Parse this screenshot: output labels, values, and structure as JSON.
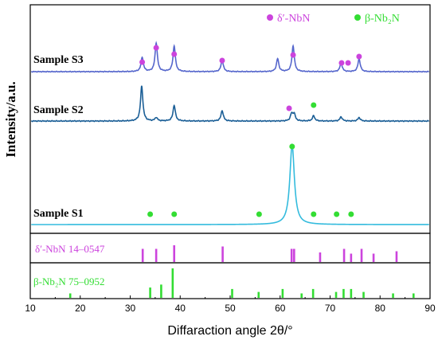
{
  "chart_data": {
    "type": "line",
    "xlabel": "Diffaraction angle 2θ/°",
    "ylabel": "Intensity/a.u.",
    "xlim": [
      10,
      90
    ],
    "xticks": [
      "10",
      "20",
      "30",
      "40",
      "50",
      "60",
      "70",
      "80",
      "90"
    ],
    "grid": false,
    "legend": {
      "position": "top-right",
      "items": [
        {
          "name": "δ′-NbN",
          "marker": "circle",
          "color": "#CC44DD"
        },
        {
          "name": "β-Nb2N",
          "display": "β-Nb₂N",
          "marker": "circle",
          "color": "#33DD33"
        }
      ]
    },
    "series": [
      {
        "name": "Sample S3",
        "color": "#5566CC",
        "peaks": [
          [
            32.4,
            0.5
          ],
          [
            35.2,
            1.0
          ],
          [
            38.8,
            0.9
          ],
          [
            48.4,
            0.4
          ],
          [
            59.5,
            0.45
          ],
          [
            62.6,
            0.9
          ],
          [
            72.2,
            0.3
          ],
          [
            75.8,
            0.45
          ]
        ],
        "markers_nbn": [
          32.4,
          35.2,
          38.8,
          48.4,
          62.6,
          72.3,
          73.6,
          75.8
        ],
        "markers_nb2n": []
      },
      {
        "name": "Sample S2",
        "color": "#1A5E96",
        "peaks": [
          [
            32.3,
            1.0
          ],
          [
            35.2,
            0.1
          ],
          [
            38.8,
            0.45
          ],
          [
            48.4,
            0.3
          ],
          [
            62.3,
            0.2
          ],
          [
            62.8,
            0.2
          ],
          [
            66.7,
            0.15
          ],
          [
            72.2,
            0.12
          ],
          [
            75.8,
            0.1
          ]
        ],
        "markers_nbn": [
          61.8
        ],
        "markers_nb2n": [
          66.7
        ]
      },
      {
        "name": "Sample S1",
        "color": "#33BBDD",
        "peaks": [
          [
            62.4,
            1.0
          ]
        ],
        "markers_nbn": [],
        "markers_nb2n": [
          62.4,
          34.0,
          38.8,
          55.8,
          66.7,
          71.3,
          74.2
        ]
      }
    ],
    "references": [
      {
        "name": "δ′-NbN 14–0547",
        "color": "#CC44DD",
        "lines": [
          [
            32.5,
            0.55
          ],
          [
            35.2,
            0.55
          ],
          [
            38.8,
            0.7
          ],
          [
            48.5,
            0.65
          ],
          [
            62.3,
            0.55
          ],
          [
            62.8,
            0.55
          ],
          [
            68.0,
            0.4
          ],
          [
            72.8,
            0.55
          ],
          [
            74.2,
            0.35
          ],
          [
            76.3,
            0.55
          ],
          [
            78.7,
            0.35
          ],
          [
            83.3,
            0.45
          ]
        ]
      },
      {
        "name": "β-Nb2N 75–0952",
        "display": "β-Nb₂N 75–0952",
        "color": "#33DD33",
        "lines": [
          [
            18.0,
            0.15
          ],
          [
            34.0,
            0.35
          ],
          [
            36.2,
            0.45
          ],
          [
            38.5,
            1.0
          ],
          [
            50.4,
            0.3
          ],
          [
            55.7,
            0.2
          ],
          [
            60.5,
            0.3
          ],
          [
            64.3,
            0.15
          ],
          [
            66.6,
            0.3
          ],
          [
            71.2,
            0.2
          ],
          [
            72.7,
            0.3
          ],
          [
            74.2,
            0.3
          ],
          [
            76.7,
            0.2
          ],
          [
            82.6,
            0.15
          ],
          [
            86.7,
            0.15
          ]
        ]
      }
    ]
  }
}
